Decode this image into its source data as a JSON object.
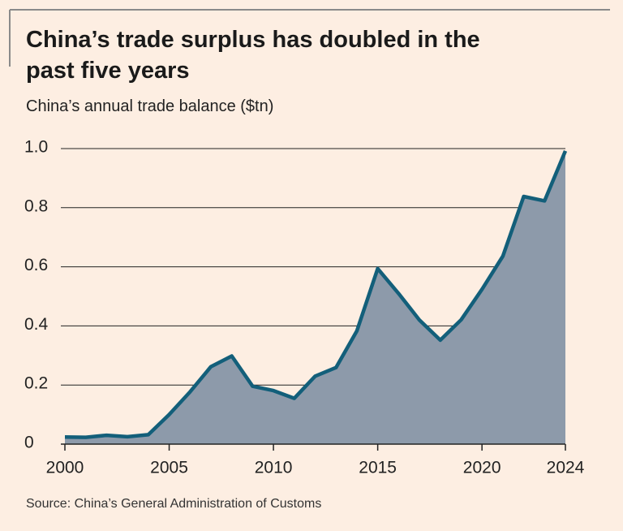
{
  "chart_data": {
    "type": "area",
    "title": "China’s trade surplus has doubled in the past five years",
    "subtitle": "China’s annual trade balance ($tn)",
    "source": "Source: China’s General Administration of Customs",
    "x": [
      2000,
      2001,
      2002,
      2003,
      2004,
      2005,
      2006,
      2007,
      2008,
      2009,
      2010,
      2011,
      2012,
      2013,
      2014,
      2015,
      2016,
      2017,
      2018,
      2019,
      2020,
      2021,
      2022,
      2023,
      2024
    ],
    "values": [
      0.024,
      0.023,
      0.03,
      0.025,
      0.032,
      0.1,
      0.177,
      0.262,
      0.298,
      0.196,
      0.181,
      0.155,
      0.23,
      0.259,
      0.383,
      0.594,
      0.51,
      0.42,
      0.352,
      0.421,
      0.524,
      0.636,
      0.838,
      0.823,
      0.992
    ],
    "line_color": "#135f7a",
    "fill_color": "#8d9aaa",
    "xlim": [
      2000,
      2024
    ],
    "xticks": [
      2000,
      2005,
      2010,
      2015,
      2020,
      2024
    ],
    "ylim": [
      0,
      1.0
    ],
    "yticks": [
      0,
      0.2,
      0.4,
      0.6,
      0.8,
      {
        "value": 1.0,
        "label": "1.0"
      }
    ],
    "grid": true
  }
}
